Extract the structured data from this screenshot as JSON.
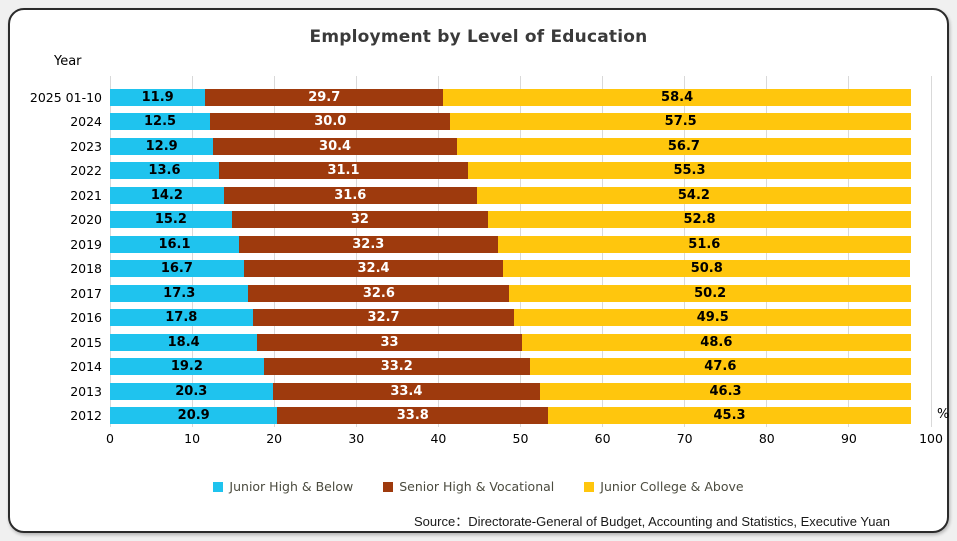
{
  "frame": {
    "page_background": "#F0F0F0",
    "card_background": "#FFFFFF",
    "card_border_color": "#2B2B2B"
  },
  "source": "Source：Directorate-General of Budget, Accounting and Statistics, Executive Yuan",
  "chart_data": {
    "type": "bar",
    "orientation": "horizontal",
    "stacked": true,
    "title": "Employment by Level of Education",
    "ylabel": "Year",
    "xlabel": "%",
    "xlim": [
      0,
      100
    ],
    "x_ticks": [
      0,
      10,
      20,
      30,
      40,
      50,
      60,
      70,
      80,
      90,
      100
    ],
    "grid": true,
    "grid_color": "#D9D9D9",
    "legend_position": "bottom",
    "categories": [
      "2025 01-10",
      "2024",
      "2023",
      "2022",
      "2021",
      "2020",
      "2019",
      "2018",
      "2017",
      "2016",
      "2015",
      "2014",
      "2013",
      "2012"
    ],
    "series": [
      {
        "name": "Junior High & Below",
        "color": "#1FC3EE",
        "label_color": "#000000",
        "values": [
          11.9,
          12.5,
          12.9,
          13.6,
          14.2,
          15.2,
          16.1,
          16.7,
          17.3,
          17.8,
          18.4,
          19.2,
          20.3,
          20.9
        ],
        "labels": [
          "11.9",
          "12.5",
          "12.9",
          "13.6",
          "14.2",
          "15.2",
          "16.1",
          "16.7",
          "17.3",
          "17.8",
          "18.4",
          "19.2",
          "20.3",
          "20.9"
        ]
      },
      {
        "name": "Senior High & Vocational",
        "color": "#9E3A0D",
        "label_color": "#FFFFFF",
        "values": [
          29.7,
          30.0,
          30.4,
          31.1,
          31.6,
          32,
          32.3,
          32.4,
          32.6,
          32.7,
          33,
          33.2,
          33.4,
          33.8
        ],
        "labels": [
          "29.7",
          "30.0",
          "30.4",
          "31.1",
          "31.6",
          "32",
          "32.3",
          "32.4",
          "32.6",
          "32.7",
          "33",
          "33.2",
          "33.4",
          "33.8"
        ]
      },
      {
        "name": "Junior College & Above",
        "color": "#FFC60D",
        "label_color": "#000000",
        "values": [
          58.4,
          57.5,
          56.7,
          55.3,
          54.2,
          52.8,
          51.6,
          50.8,
          50.2,
          49.5,
          48.6,
          47.6,
          46.3,
          45.3
        ],
        "labels": [
          "58.4",
          "57.5",
          "56.7",
          "55.3",
          "54.2",
          "52.8",
          "51.6",
          "50.8",
          "50.2",
          "49.5",
          "48.6",
          "47.6",
          "46.3",
          "45.3"
        ]
      }
    ]
  }
}
